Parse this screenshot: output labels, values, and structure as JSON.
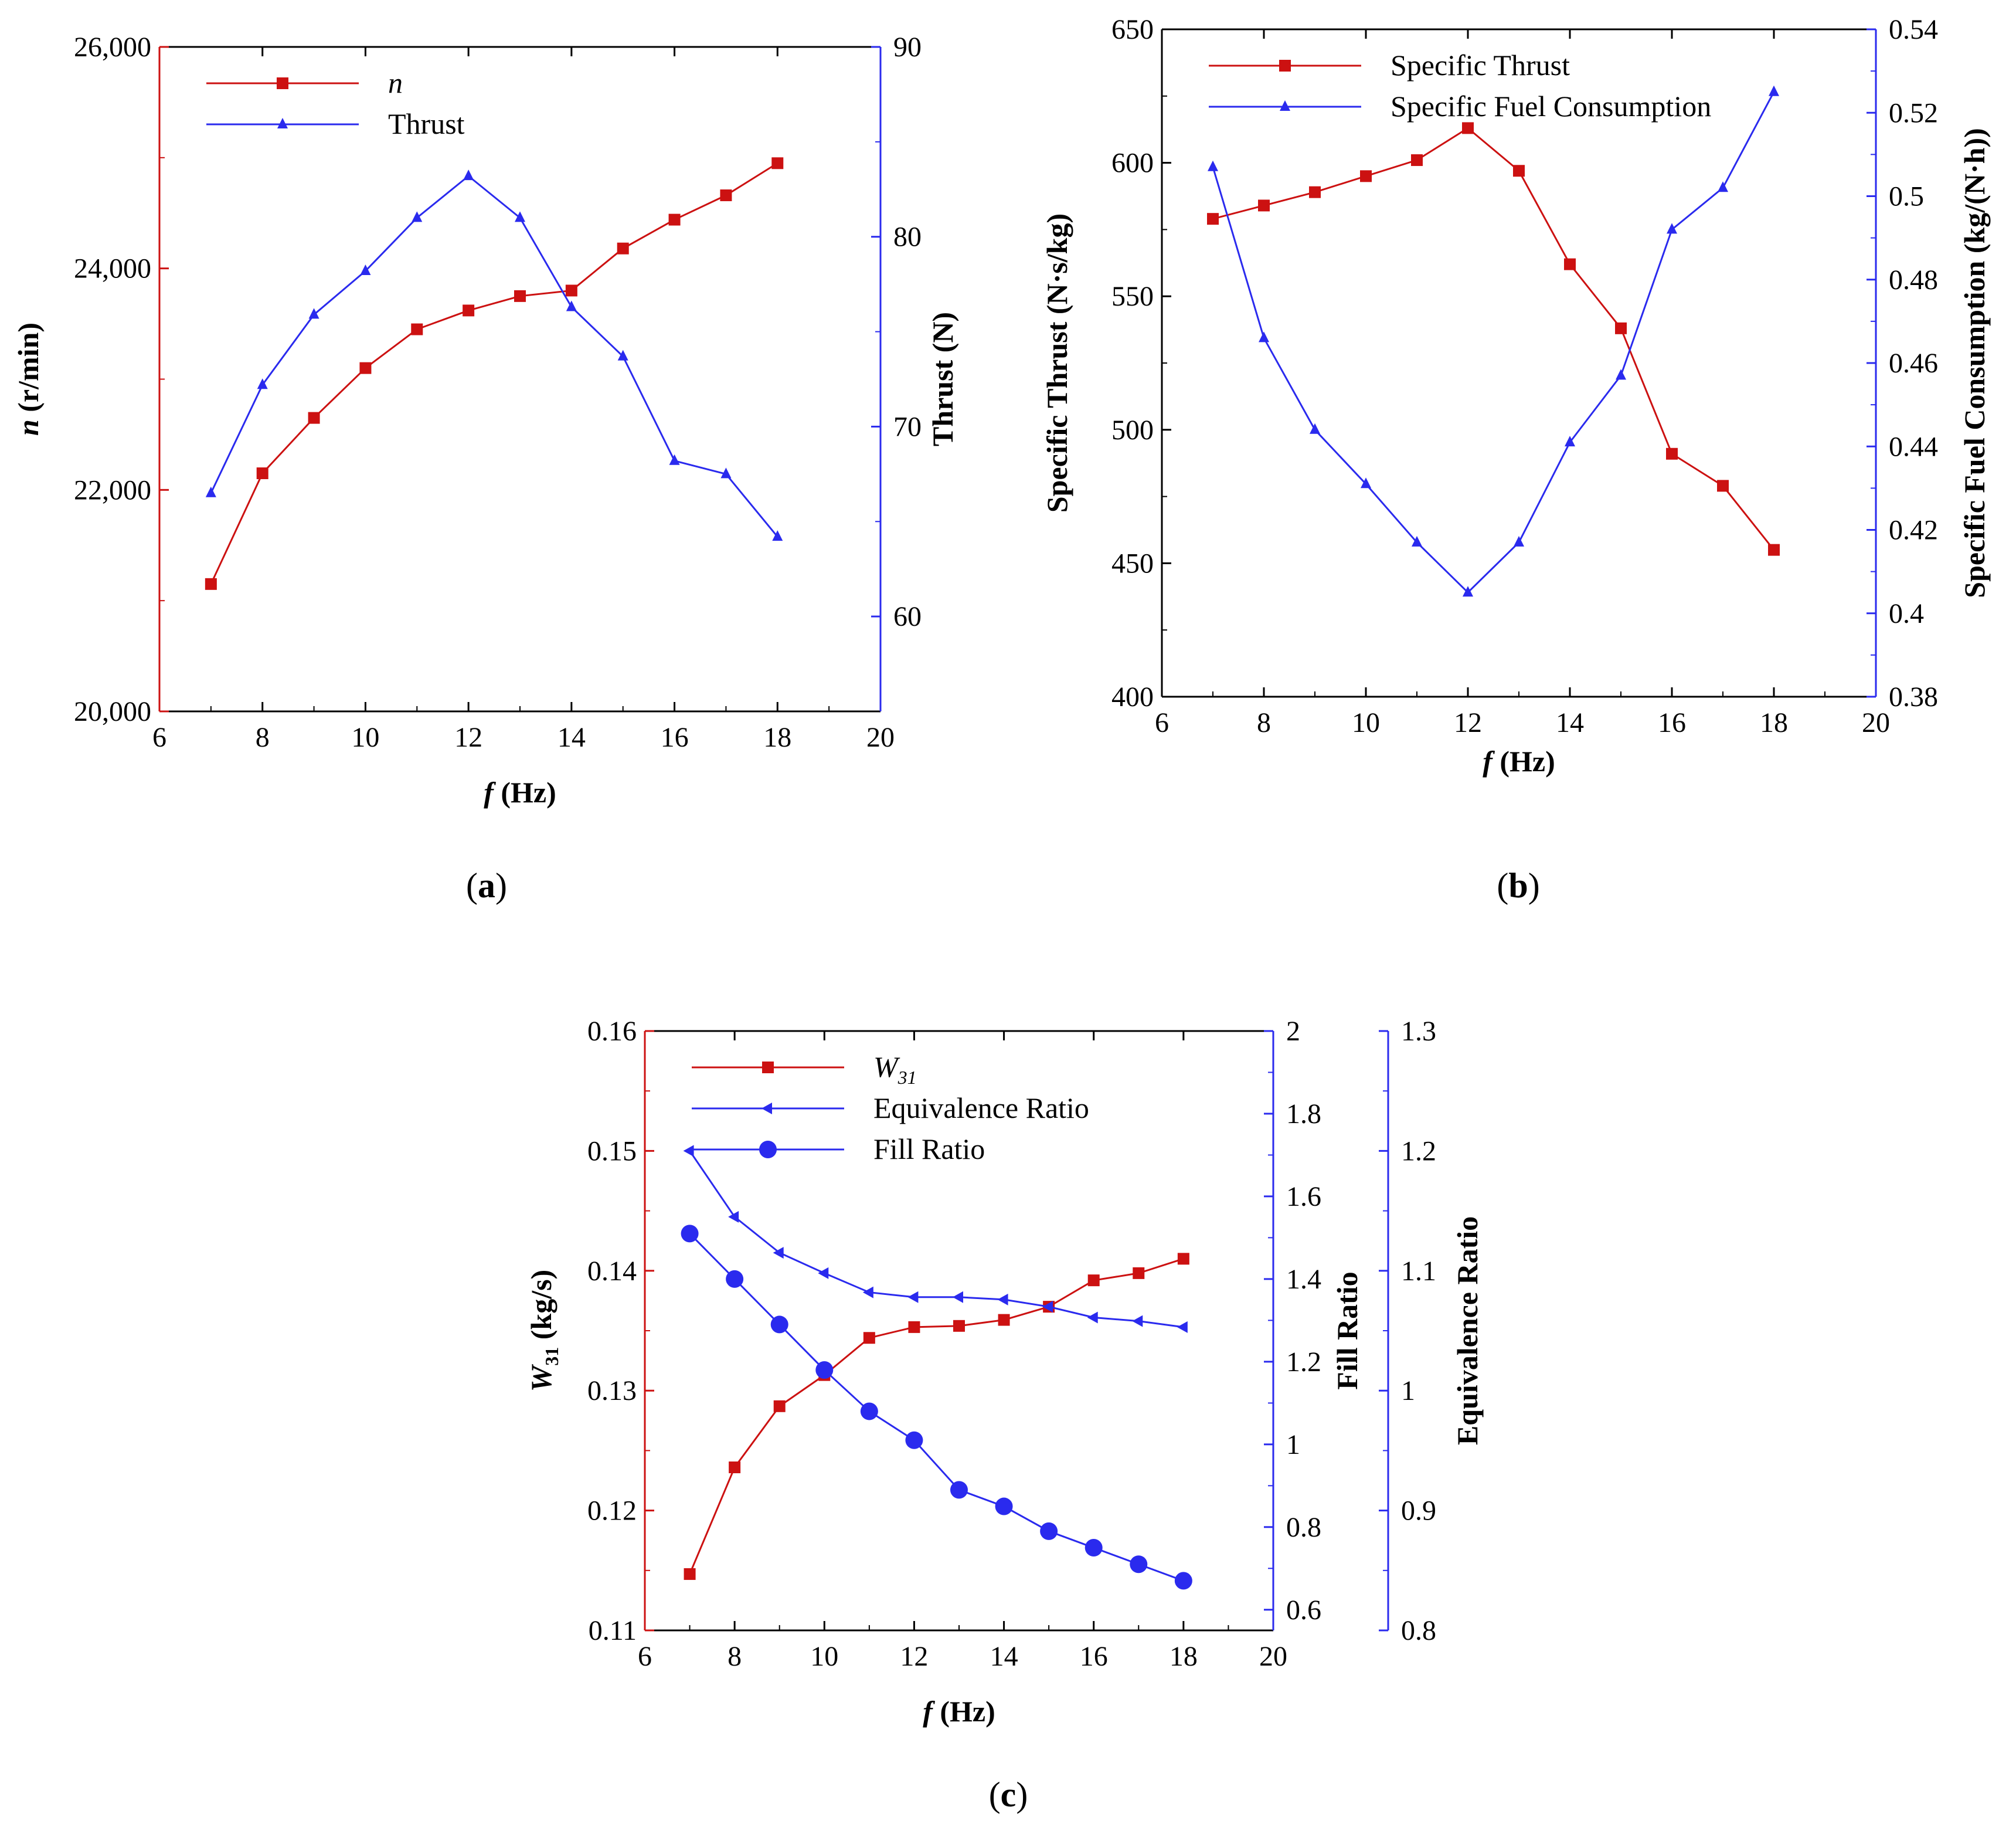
{
  "colors": {
    "red": "#cc1111",
    "blue": "#2a2aee",
    "black": "#000000"
  },
  "chart_data": [
    {
      "id": "a",
      "type": "line",
      "panel_label": {
        "open": "(",
        "letter": "a",
        "close": ")"
      },
      "xlabel": {
        "var": "f",
        "unit": " (Hz)"
      },
      "xlim": [
        6,
        20
      ],
      "xticks": [
        6,
        8,
        10,
        12,
        14,
        16,
        18,
        20
      ],
      "x": [
        7,
        8,
        9,
        10,
        11,
        12,
        13,
        14,
        15,
        16,
        17,
        18
      ],
      "axes": [
        {
          "side": "left",
          "color": "#cc1111",
          "label": {
            "var": "n",
            "unit": " (r/min)"
          },
          "ylim": [
            20000,
            26000
          ],
          "ticks": [
            20000,
            22000,
            24000,
            26000
          ],
          "tick_labels": [
            "20,000",
            "22,000",
            "24,000",
            "26,000"
          ]
        },
        {
          "side": "right",
          "color": "#2a2aee",
          "label": {
            "var": "",
            "unit": "Thrust (N)"
          },
          "ylim": [
            55,
            90
          ],
          "ticks": [
            60,
            70,
            80,
            90
          ],
          "tick_labels": [
            "60",
            "70",
            "80",
            "90"
          ]
        }
      ],
      "legend_position": "top-left",
      "series": [
        {
          "name": "n",
          "italic": true,
          "axis": 0,
          "color": "#cc1111",
          "marker": "square",
          "values": [
            21150,
            22150,
            22650,
            23100,
            23450,
            23620,
            23750,
            23800,
            24180,
            24440,
            24660,
            24950
          ]
        },
        {
          "name": "Thrust",
          "italic": false,
          "axis": 1,
          "color": "#2a2aee",
          "marker": "triangle",
          "values": [
            66.5,
            72.2,
            75.9,
            78.2,
            81.0,
            83.2,
            81.0,
            76.3,
            73.7,
            68.2,
            67.5,
            64.2
          ]
        }
      ]
    },
    {
      "id": "b",
      "type": "line",
      "panel_label": {
        "open": "(",
        "letter": "b",
        "close": ")"
      },
      "xlabel": {
        "var": "f",
        "unit": " (Hz)"
      },
      "xlim": [
        6,
        20
      ],
      "xticks": [
        6,
        8,
        10,
        12,
        14,
        16,
        18,
        20
      ],
      "x": [
        7,
        8,
        9,
        10,
        11,
        12,
        13,
        14,
        15,
        16,
        17,
        18
      ],
      "axes": [
        {
          "side": "left",
          "color": "#000000",
          "label": {
            "var": "",
            "unit": "Specific Thrust (N·s/kg)"
          },
          "ylim": [
            400,
            650
          ],
          "ticks": [
            400,
            450,
            500,
            550,
            600,
            650
          ],
          "tick_labels": [
            "400",
            "450",
            "500",
            "550",
            "600",
            "650"
          ]
        },
        {
          "side": "right",
          "color": "#2a2aee",
          "label": {
            "var": "",
            "unit": "Specific Fuel Consumption (kg/(N·h))"
          },
          "ylim": [
            0.38,
            0.54
          ],
          "ticks": [
            0.38,
            0.4,
            0.42,
            0.44,
            0.46,
            0.48,
            0.5,
            0.52,
            0.54
          ],
          "tick_labels": [
            "0.38",
            "0.4",
            "0.42",
            "0.44",
            "0.46",
            "0.48",
            "0.5",
            "0.52",
            "0.54"
          ]
        }
      ],
      "legend_position": "top-left",
      "series": [
        {
          "name": "Specific Thrust",
          "italic": false,
          "axis": 0,
          "color": "#cc1111",
          "marker": "square",
          "values": [
            579,
            584,
            589,
            595,
            601,
            613,
            597,
            562,
            538,
            491,
            479,
            455
          ]
        },
        {
          "name": "Specific Fuel Consumption",
          "italic": false,
          "axis": 1,
          "color": "#2a2aee",
          "marker": "triangle",
          "values": [
            0.507,
            0.466,
            0.444,
            0.431,
            0.417,
            0.405,
            0.417,
            0.441,
            0.457,
            0.492,
            0.502,
            0.525
          ]
        }
      ]
    },
    {
      "id": "c",
      "type": "line",
      "panel_label": {
        "open": "(",
        "letter": "c",
        "close": ")"
      },
      "xlabel": {
        "var": "f",
        "unit": " (Hz)"
      },
      "xlim": [
        6,
        20
      ],
      "xticks": [
        6,
        8,
        10,
        12,
        14,
        16,
        18,
        20
      ],
      "x": [
        7,
        8,
        9,
        10,
        11,
        12,
        13,
        14,
        15,
        16,
        17,
        18
      ],
      "axes": [
        {
          "side": "left",
          "color": "#cc1111",
          "label": {
            "var": "W",
            "sub": "31",
            "unit": " (kg/s)"
          },
          "ylim": [
            0.11,
            0.16
          ],
          "ticks": [
            0.11,
            0.12,
            0.13,
            0.14,
            0.15,
            0.16
          ],
          "tick_labels": [
            "0.11",
            "0.12",
            "0.13",
            "0.14",
            "0.15",
            "0.16"
          ]
        },
        {
          "side": "right",
          "color": "#2a2aee",
          "label": {
            "var": "",
            "unit": "Fill Ratio"
          },
          "ylim": [
            0.55,
            2.0
          ],
          "ticks": [
            0.6,
            0.8,
            1.0,
            1.2,
            1.4,
            1.6,
            1.8,
            2.0
          ],
          "tick_labels": [
            "0.6",
            "0.8",
            "1",
            "1.2",
            "1.4",
            "1.6",
            "1.8",
            "2"
          ]
        },
        {
          "side": "right2",
          "color": "#2a2aee",
          "label": {
            "var": "",
            "unit": "Equivalence Ratio"
          },
          "ylim": [
            0.8,
            1.3
          ],
          "ticks": [
            0.8,
            0.9,
            1.0,
            1.1,
            1.2,
            1.3
          ],
          "tick_labels": [
            "0.8",
            "0.9",
            "1",
            "1.1",
            "1.2",
            "1.3"
          ]
        }
      ],
      "legend_position": "top-left",
      "series": [
        {
          "name": "W",
          "sub": "31",
          "italic": true,
          "axis": 0,
          "color": "#cc1111",
          "marker": "square",
          "values": [
            0.1147,
            0.1236,
            0.1287,
            0.1313,
            0.1344,
            0.1353,
            0.1354,
            0.1359,
            0.137,
            0.1392,
            0.1398,
            0.141
          ]
        },
        {
          "name": "Equivalence Ratio",
          "italic": false,
          "axis": 2,
          "color": "#2a2aee",
          "marker": "triangle-left",
          "values": [
            1.2,
            1.145,
            1.115,
            1.098,
            1.082,
            1.078,
            1.078,
            1.076,
            1.07,
            1.061,
            1.058,
            1.053
          ]
        },
        {
          "name": "Fill Ratio",
          "italic": false,
          "axis": 1,
          "color": "#2a2aee",
          "marker": "circle",
          "values": [
            1.51,
            1.4,
            1.29,
            1.18,
            1.08,
            1.01,
            0.89,
            0.85,
            0.79,
            0.75,
            0.71,
            0.67
          ]
        }
      ]
    }
  ]
}
